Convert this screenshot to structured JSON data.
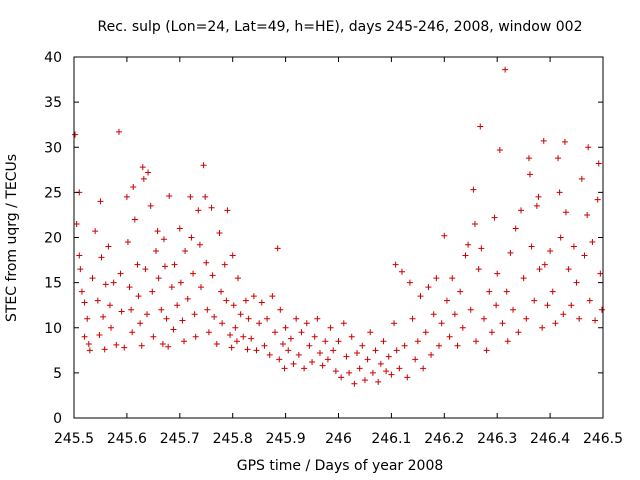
{
  "chart_data": {
    "type": "scatter",
    "title": "Rec. sulp (Lon=24, Lat=49, h=HE), days 245-246, 2008, window 002",
    "xlabel": "GPS time / Days of year 2008",
    "ylabel": "STEC from uqrg / TECUs",
    "xlim": [
      245.5,
      246.5
    ],
    "ylim": [
      0,
      40
    ],
    "xticks": [
      "245.5",
      "245.6",
      "245.7",
      "245.8",
      "245.9",
      "246",
      "246.1",
      "246.2",
      "246.3",
      "246.4",
      "246.5"
    ],
    "yticks": [
      "0",
      "5",
      "10",
      "15",
      "20",
      "25",
      "30",
      "35",
      "40"
    ],
    "marker": "+",
    "color": "#cc0000",
    "grid": false,
    "legend": "none",
    "series": [
      {
        "points": [
          [
            245.502,
            31.4
          ],
          [
            245.505,
            21.5
          ],
          [
            245.51,
            25.0
          ],
          [
            245.51,
            18.0
          ],
          [
            245.512,
            16.5
          ],
          [
            245.515,
            14.0
          ],
          [
            245.52,
            9.0
          ],
          [
            245.52,
            12.8
          ],
          [
            245.525,
            11.0
          ],
          [
            245.528,
            8.2
          ],
          [
            245.53,
            7.5
          ],
          [
            245.535,
            15.5
          ],
          [
            245.54,
            20.7
          ],
          [
            245.545,
            13.0
          ],
          [
            245.548,
            9.2
          ],
          [
            245.55,
            24.0
          ],
          [
            245.552,
            17.8
          ],
          [
            245.555,
            11.2
          ],
          [
            245.558,
            7.6
          ],
          [
            245.56,
            14.8
          ],
          [
            245.565,
            19.0
          ],
          [
            245.568,
            12.5
          ],
          [
            245.57,
            10.0
          ],
          [
            245.575,
            15.0
          ],
          [
            245.58,
            8.1
          ],
          [
            245.585,
            31.7
          ],
          [
            245.588,
            16.0
          ],
          [
            245.59,
            11.8
          ],
          [
            245.595,
            7.8
          ],
          [
            245.6,
            24.5
          ],
          [
            245.602,
            19.5
          ],
          [
            245.605,
            14.5
          ],
          [
            245.608,
            12.0
          ],
          [
            245.61,
            9.5
          ],
          [
            245.612,
            25.6
          ],
          [
            245.615,
            22.0
          ],
          [
            245.62,
            17.0
          ],
          [
            245.622,
            13.5
          ],
          [
            245.625,
            10.5
          ],
          [
            245.628,
            8.0
          ],
          [
            245.63,
            27.8
          ],
          [
            245.632,
            26.5
          ],
          [
            245.635,
            16.5
          ],
          [
            245.638,
            11.5
          ],
          [
            245.64,
            27.2
          ],
          [
            245.645,
            23.5
          ],
          [
            245.648,
            14.0
          ],
          [
            245.65,
            9.0
          ],
          [
            245.655,
            18.5
          ],
          [
            245.658,
            20.7
          ],
          [
            245.66,
            15.5
          ],
          [
            245.665,
            12.0
          ],
          [
            245.668,
            8.2
          ],
          [
            245.67,
            19.8
          ],
          [
            245.672,
            16.8
          ],
          [
            245.675,
            11.0
          ],
          [
            245.678,
            7.9
          ],
          [
            245.68,
            24.6
          ],
          [
            245.685,
            14.5
          ],
          [
            245.688,
            9.8
          ],
          [
            245.69,
            17.0
          ],
          [
            245.695,
            12.5
          ],
          [
            245.7,
            21.0
          ],
          [
            245.702,
            15.0
          ],
          [
            245.705,
            10.8
          ],
          [
            245.708,
            8.5
          ],
          [
            245.71,
            18.5
          ],
          [
            245.715,
            13.2
          ],
          [
            245.72,
            24.5
          ],
          [
            245.722,
            20.0
          ],
          [
            245.725,
            16.0
          ],
          [
            245.728,
            11.5
          ],
          [
            245.73,
            9.0
          ],
          [
            245.735,
            23.0
          ],
          [
            245.738,
            19.2
          ],
          [
            245.74,
            14.5
          ],
          [
            245.745,
            28.0
          ],
          [
            245.748,
            24.5
          ],
          [
            245.75,
            17.2
          ],
          [
            245.752,
            12.0
          ],
          [
            245.755,
            9.5
          ],
          [
            245.76,
            23.3
          ],
          [
            245.762,
            15.8
          ],
          [
            245.765,
            11.2
          ],
          [
            245.77,
            8.2
          ],
          [
            245.775,
            20.5
          ],
          [
            245.778,
            14.0
          ],
          [
            245.78,
            10.5
          ],
          [
            245.785,
            17.0
          ],
          [
            245.788,
            13.0
          ],
          [
            245.79,
            23.0
          ],
          [
            245.795,
            9.2
          ],
          [
            245.798,
            7.8
          ],
          [
            245.8,
            18.0
          ],
          [
            245.802,
            12.5
          ],
          [
            245.805,
            10.0
          ],
          [
            245.808,
            8.5
          ],
          [
            245.81,
            15.5
          ],
          [
            245.815,
            11.5
          ],
          [
            245.82,
            9.0
          ],
          [
            245.825,
            13.0
          ],
          [
            245.828,
            7.6
          ],
          [
            245.83,
            11.0
          ],
          [
            245.835,
            8.8
          ],
          [
            245.84,
            13.5
          ],
          [
            245.845,
            7.5
          ],
          [
            245.85,
            10.5
          ],
          [
            245.855,
            12.8
          ],
          [
            245.86,
            8.0
          ],
          [
            245.865,
            11.0
          ],
          [
            245.87,
            7.0
          ],
          [
            245.875,
            13.5
          ],
          [
            245.88,
            9.5
          ],
          [
            245.885,
            18.8
          ],
          [
            245.888,
            6.5
          ],
          [
            245.89,
            12.0
          ],
          [
            245.895,
            8.2
          ],
          [
            245.898,
            5.5
          ],
          [
            245.9,
            10.0
          ],
          [
            245.905,
            7.5
          ],
          [
            245.91,
            8.8
          ],
          [
            245.915,
            6.0
          ],
          [
            245.92,
            11.0
          ],
          [
            245.925,
            7.0
          ],
          [
            245.93,
            9.5
          ],
          [
            245.935,
            5.5
          ],
          [
            245.94,
            10.5
          ],
          [
            245.945,
            8.0
          ],
          [
            245.95,
            6.2
          ],
          [
            245.955,
            9.0
          ],
          [
            245.96,
            11.0
          ],
          [
            245.965,
            7.2
          ],
          [
            245.97,
            5.8
          ],
          [
            245.975,
            8.5
          ],
          [
            245.98,
            6.5
          ],
          [
            245.985,
            10.0
          ],
          [
            245.99,
            7.5
          ],
          [
            245.995,
            5.2
          ],
          [
            246.0,
            8.5
          ],
          [
            246.005,
            4.5
          ],
          [
            246.01,
            10.5
          ],
          [
            246.015,
            6.8
          ],
          [
            246.02,
            5.0
          ],
          [
            246.025,
            9.0
          ],
          [
            246.03,
            3.8
          ],
          [
            246.035,
            7.2
          ],
          [
            246.04,
            5.5
          ],
          [
            246.045,
            8.0
          ],
          [
            246.05,
            4.2
          ],
          [
            246.055,
            6.5
          ],
          [
            246.06,
            9.5
          ],
          [
            246.065,
            5.0
          ],
          [
            246.07,
            7.5
          ],
          [
            246.075,
            4.0
          ],
          [
            246.08,
            6.0
          ],
          [
            246.085,
            8.5
          ],
          [
            246.09,
            5.2
          ],
          [
            246.095,
            6.8
          ],
          [
            246.1,
            4.8
          ],
          [
            246.105,
            10.5
          ],
          [
            246.108,
            17.0
          ],
          [
            246.11,
            7.5
          ],
          [
            246.115,
            5.5
          ],
          [
            246.12,
            16.2
          ],
          [
            246.125,
            8.0
          ],
          [
            246.13,
            4.5
          ],
          [
            246.135,
            15.0
          ],
          [
            246.14,
            11.0
          ],
          [
            246.145,
            6.5
          ],
          [
            246.15,
            8.5
          ],
          [
            246.155,
            13.5
          ],
          [
            246.16,
            5.5
          ],
          [
            246.165,
            9.5
          ],
          [
            246.17,
            14.5
          ],
          [
            246.175,
            7.0
          ],
          [
            246.18,
            11.5
          ],
          [
            246.185,
            15.5
          ],
          [
            246.19,
            8.0
          ],
          [
            246.195,
            10.5
          ],
          [
            246.2,
            20.2
          ],
          [
            246.205,
            13.0
          ],
          [
            246.21,
            9.0
          ],
          [
            246.215,
            15.5
          ],
          [
            246.22,
            11.5
          ],
          [
            246.225,
            8.0
          ],
          [
            246.23,
            14.0
          ],
          [
            246.235,
            10.0
          ],
          [
            246.24,
            18.0
          ],
          [
            246.245,
            19.2
          ],
          [
            246.25,
            12.0
          ],
          [
            246.255,
            25.3
          ],
          [
            246.258,
            21.5
          ],
          [
            246.26,
            8.5
          ],
          [
            246.265,
            16.5
          ],
          [
            246.268,
            32.3
          ],
          [
            246.27,
            18.8
          ],
          [
            246.275,
            11.0
          ],
          [
            246.28,
            7.5
          ],
          [
            246.285,
            14.0
          ],
          [
            246.29,
            9.5
          ],
          [
            246.295,
            22.2
          ],
          [
            246.298,
            12.5
          ],
          [
            246.3,
            16.0
          ],
          [
            246.305,
            29.7
          ],
          [
            246.31,
            10.5
          ],
          [
            246.315,
            38.6
          ],
          [
            246.318,
            14.0
          ],
          [
            246.32,
            8.5
          ],
          [
            246.325,
            18.3
          ],
          [
            246.33,
            12.0
          ],
          [
            246.335,
            21.0
          ],
          [
            246.34,
            9.5
          ],
          [
            246.345,
            23.0
          ],
          [
            246.35,
            15.5
          ],
          [
            246.355,
            11.0
          ],
          [
            246.36,
            28.8
          ],
          [
            246.362,
            27.0
          ],
          [
            246.365,
            19.0
          ],
          [
            246.37,
            13.0
          ],
          [
            246.375,
            23.5
          ],
          [
            246.378,
            24.5
          ],
          [
            246.38,
            16.5
          ],
          [
            246.385,
            10.0
          ],
          [
            246.388,
            30.7
          ],
          [
            246.39,
            17.0
          ],
          [
            246.395,
            12.5
          ],
          [
            246.4,
            18.5
          ],
          [
            246.405,
            14.0
          ],
          [
            246.41,
            10.5
          ],
          [
            246.415,
            28.8
          ],
          [
            246.418,
            25.0
          ],
          [
            246.42,
            20.0
          ],
          [
            246.425,
            11.5
          ],
          [
            246.428,
            30.6
          ],
          [
            246.43,
            22.8
          ],
          [
            246.435,
            16.5
          ],
          [
            246.44,
            12.5
          ],
          [
            246.445,
            19.0
          ],
          [
            246.45,
            15.0
          ],
          [
            246.455,
            11.0
          ],
          [
            246.46,
            26.5
          ],
          [
            246.465,
            18.0
          ],
          [
            246.47,
            22.5
          ],
          [
            246.472,
            30.0
          ],
          [
            246.475,
            13.0
          ],
          [
            246.48,
            19.5
          ],
          [
            246.485,
            10.8
          ],
          [
            246.49,
            24.2
          ],
          [
            246.492,
            28.2
          ],
          [
            246.495,
            16.0
          ],
          [
            246.498,
            12.0
          ]
        ]
      }
    ]
  }
}
